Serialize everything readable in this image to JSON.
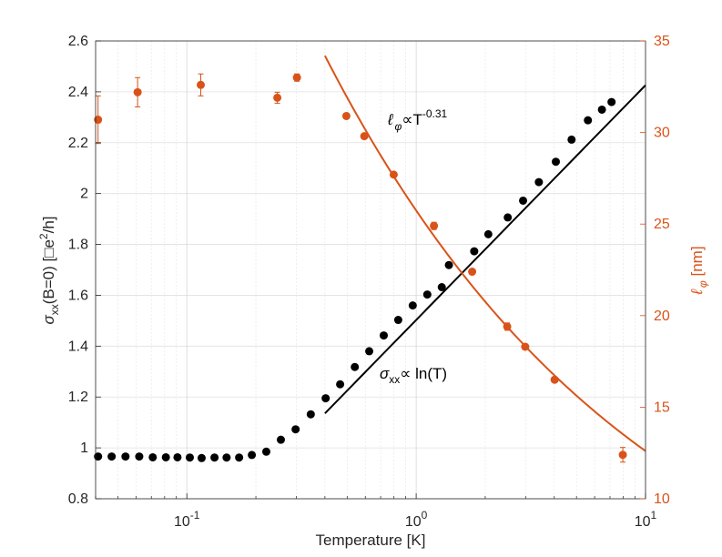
{
  "chart_data": {
    "type": "scatter",
    "x_scale": "log",
    "xlim": [
      0.04,
      10
    ],
    "xlabel": "Temperature [K]",
    "x_ticks": [
      {
        "value": 0.1,
        "mantissa": "10",
        "exp": "-1"
      },
      {
        "value": 1,
        "mantissa": "10",
        "exp": "0"
      },
      {
        "value": 10,
        "mantissa": "10",
        "exp": "1"
      }
    ],
    "grid": true,
    "left_axis": {
      "label": {
        "sigma": "σ",
        "sub": "xx",
        "main": "(B=0) [□e",
        "sup": "2",
        "tail": "/h]"
      },
      "ylim": [
        0.8,
        2.6
      ],
      "ticks": [
        "0.8",
        "1",
        "1.2",
        "1.4",
        "1.6",
        "1.8",
        "2",
        "2.2",
        "2.4",
        "2.6"
      ],
      "color": "#000000"
    },
    "right_axis": {
      "label": {
        "sym": "ℓ",
        "sub": "φ",
        "tail": " [nm]"
      },
      "ylim": [
        10,
        35
      ],
      "ticks": [
        "10",
        "15",
        "20",
        "25",
        "30",
        "35"
      ],
      "color": "#D95319"
    },
    "series": [
      {
        "name": "sigma_xx",
        "axis": "left",
        "color": "#000000",
        "x": [
          0.041,
          0.047,
          0.054,
          0.062,
          0.071,
          0.081,
          0.091,
          0.103,
          0.116,
          0.132,
          0.149,
          0.169,
          0.192,
          0.222,
          0.257,
          0.298,
          0.347,
          0.403,
          0.466,
          0.54,
          0.624,
          0.722,
          0.835,
          0.966,
          1.118,
          1.293,
          1.389,
          1.791,
          2.063,
          2.508,
          2.925,
          3.427,
          4.064,
          4.759,
          5.608,
          6.455,
          7.11
        ],
        "y": [
          0.966,
          0.966,
          0.966,
          0.966,
          0.963,
          0.963,
          0.963,
          0.962,
          0.96,
          0.962,
          0.962,
          0.962,
          0.972,
          0.985,
          1.032,
          1.073,
          1.132,
          1.195,
          1.25,
          1.318,
          1.38,
          1.442,
          1.503,
          1.56,
          1.603,
          1.632,
          1.719,
          1.773,
          1.84,
          1.906,
          1.972,
          2.045,
          2.125,
          2.212,
          2.288,
          2.33,
          2.36
        ]
      },
      {
        "name": "l_phi",
        "axis": "right",
        "color": "#D95319",
        "x": [
          0.041,
          0.061,
          0.115,
          0.248,
          0.302,
          0.496,
          0.594,
          0.798,
          1.195,
          1.754,
          2.494,
          2.988,
          4.015,
          7.961
        ],
        "y": [
          30.7,
          32.2,
          32.6,
          31.9,
          33.0,
          30.9,
          29.8,
          27.7,
          24.9,
          22.4,
          19.4,
          18.3,
          16.5,
          12.4
        ],
        "err": [
          1.3,
          0.8,
          0.6,
          0.3,
          0.2,
          0.1,
          0.1,
          0.1,
          0.2,
          0.1,
          0.2,
          0.1,
          0.1,
          0.4
        ]
      }
    ],
    "fits": [
      {
        "name": "sigma_fit",
        "axis": "left",
        "color": "#000000",
        "x_range": [
          0.4,
          10
        ],
        "a": 1.503,
        "b": 0.923
      },
      {
        "name": "lphi_fit",
        "axis": "right",
        "color": "#D95319",
        "x_range": [
          0.4,
          10
        ],
        "a": 25.74,
        "p": 0.31
      }
    ],
    "annotations": {
      "lphi": {
        "sym": "ℓ",
        "sub": "φ",
        "main": "∝T",
        "sup": "-0.31"
      },
      "sigma": {
        "sym": "σ",
        "sub": "xx",
        "main": "∝ ln(T)"
      }
    }
  }
}
